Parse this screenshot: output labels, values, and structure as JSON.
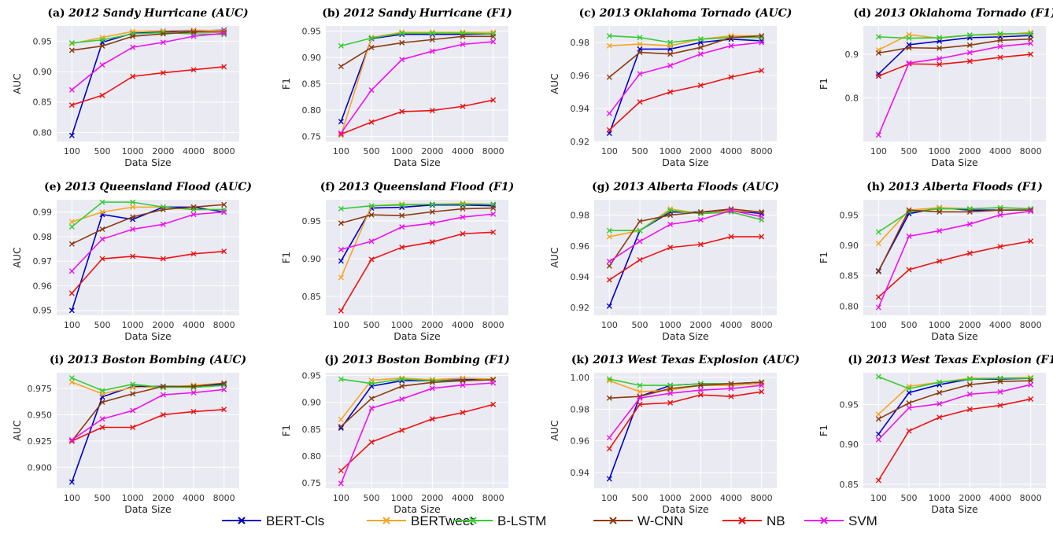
{
  "chart_data": {
    "type": "line",
    "x_categories": [
      "100",
      "500",
      "1000",
      "2000",
      "4000",
      "8000"
    ],
    "xlabel": "Data Size",
    "legend_position": "bottom-center",
    "series_names": [
      "BERT-Cls",
      "BERTweet",
      "B-LSTM",
      "W-CNN",
      "NB",
      "SVM"
    ],
    "series_colors": [
      "#0000cc",
      "#f5a623",
      "#33cc33",
      "#8b3a0f",
      "#ee1111",
      "#ee11ee"
    ],
    "marker": "x",
    "grid": true,
    "panels": [
      {
        "tag": "(a)",
        "title": "2012 Sandy Hurricane (AUC)",
        "ylabel": "AUC",
        "ylim": [
          0.785,
          0.975
        ],
        "yticks": [
          0.8,
          0.85,
          0.9,
          0.95
        ],
        "ytick_labels": [
          "0.80",
          "0.85",
          "0.90",
          "0.95"
        ],
        "series": [
          [
            0.795,
            0.948,
            0.963,
            0.965,
            0.967,
            0.968
          ],
          [
            0.946,
            0.956,
            0.966,
            0.967,
            0.968,
            0.967
          ],
          [
            0.947,
            0.952,
            0.962,
            0.964,
            0.962,
            0.961
          ],
          [
            0.935,
            0.942,
            0.958,
            0.962,
            0.965,
            0.965
          ],
          [
            0.845,
            0.861,
            0.892,
            0.898,
            0.903,
            0.908
          ],
          [
            0.87,
            0.911,
            0.94,
            0.948,
            0.958,
            0.963
          ]
        ]
      },
      {
        "tag": "(b)",
        "title": "2012 Sandy Hurricane (F1)",
        "ylabel": "F1",
        "ylim": [
          0.74,
          0.96
        ],
        "yticks": [
          0.75,
          0.8,
          0.85,
          0.9,
          0.95
        ],
        "ytick_labels": [
          "0.75",
          "0.80",
          "0.85",
          "0.90",
          "0.95"
        ],
        "series": [
          [
            0.778,
            0.936,
            0.944,
            0.944,
            0.944,
            0.945
          ],
          [
            0.752,
            0.938,
            0.948,
            0.948,
            0.948,
            0.948
          ],
          [
            0.922,
            0.937,
            0.946,
            0.946,
            0.946,
            0.945
          ],
          [
            0.883,
            0.919,
            0.928,
            0.934,
            0.94,
            0.94
          ],
          [
            0.754,
            0.777,
            0.797,
            0.799,
            0.807,
            0.819
          ],
          [
            0.756,
            0.838,
            0.896,
            0.912,
            0.925,
            0.93
          ]
        ]
      },
      {
        "tag": "(c)",
        "title": "2013 Oklahoma Tornado (AUC)",
        "ylabel": "AUC",
        "ylim": [
          0.92,
          0.99
        ],
        "yticks": [
          0.92,
          0.94,
          0.96,
          0.98
        ],
        "ytick_labels": [
          "0.92",
          "0.94",
          "0.96",
          "0.98"
        ],
        "series": [
          [
            0.925,
            0.976,
            0.976,
            0.98,
            0.982,
            0.981
          ],
          [
            0.978,
            0.979,
            0.978,
            0.982,
            0.984,
            0.984
          ],
          [
            0.984,
            0.983,
            0.98,
            0.982,
            0.983,
            0.983
          ],
          [
            0.959,
            0.974,
            0.973,
            0.977,
            0.983,
            0.984
          ],
          [
            0.927,
            0.944,
            0.95,
            0.954,
            0.959,
            0.963
          ],
          [
            0.937,
            0.961,
            0.966,
            0.973,
            0.978,
            0.98
          ]
        ]
      },
      {
        "tag": "(d)",
        "title": "2013 Oklahoma Tornado (F1)",
        "ylabel": "F1",
        "ylim": [
          0.7,
          0.965
        ],
        "yticks": [
          0.8,
          0.9
        ],
        "ytick_labels": [
          "0.8",
          "0.9"
        ],
        "series": [
          [
            0.855,
            0.922,
            0.93,
            0.938,
            0.94,
            0.943
          ],
          [
            0.91,
            0.945,
            0.937,
            0.944,
            0.945,
            0.95
          ],
          [
            0.94,
            0.937,
            0.938,
            0.944,
            0.947,
            0.947
          ],
          [
            0.903,
            0.915,
            0.914,
            0.921,
            0.932,
            0.935
          ],
          [
            0.85,
            0.878,
            0.877,
            0.884,
            0.893,
            0.9
          ],
          [
            0.715,
            0.88,
            0.89,
            0.904,
            0.918,
            0.925
          ]
        ]
      },
      {
        "tag": "(e)",
        "title": "2013 Queensland Flood (AUC)",
        "ylabel": "AUC",
        "ylim": [
          0.948,
          0.995
        ],
        "yticks": [
          0.95,
          0.96,
          0.97,
          0.98,
          0.99
        ],
        "ytick_labels": [
          "0.95",
          "0.96",
          "0.97",
          "0.98",
          "0.99"
        ],
        "series": [
          [
            0.95,
            0.989,
            0.987,
            0.992,
            0.992,
            0.99
          ],
          [
            0.986,
            0.99,
            0.992,
            0.992,
            0.991,
            0.991
          ],
          [
            0.984,
            0.994,
            0.994,
            0.992,
            0.991,
            0.991
          ],
          [
            0.977,
            0.983,
            0.988,
            0.991,
            0.992,
            0.993
          ],
          [
            0.957,
            0.971,
            0.972,
            0.971,
            0.973,
            0.974
          ],
          [
            0.966,
            0.979,
            0.983,
            0.985,
            0.989,
            0.99
          ]
        ]
      },
      {
        "tag": "(f)",
        "title": "2013 Queensland Flood (F1)",
        "ylabel": "F1",
        "ylim": [
          0.825,
          0.978
        ],
        "yticks": [
          0.85,
          0.9,
          0.95
        ],
        "ytick_labels": [
          "0.85",
          "0.90",
          "0.95"
        ],
        "series": [
          [
            0.897,
            0.967,
            0.968,
            0.971,
            0.971,
            0.97
          ],
          [
            0.875,
            0.97,
            0.972,
            0.972,
            0.973,
            0.972
          ],
          [
            0.966,
            0.97,
            0.971,
            0.972,
            0.972,
            0.972
          ],
          [
            0.947,
            0.958,
            0.957,
            0.962,
            0.966,
            0.967
          ],
          [
            0.831,
            0.899,
            0.915,
            0.922,
            0.933,
            0.935
          ],
          [
            0.912,
            0.923,
            0.942,
            0.947,
            0.955,
            0.959
          ]
        ]
      },
      {
        "tag": "(g)",
        "title": "2013 Alberta Floods (AUC)",
        "ylabel": "AUC",
        "ylim": [
          0.915,
          0.99
        ],
        "yticks": [
          0.92,
          0.94,
          0.96,
          0.98
        ],
        "ytick_labels": [
          "0.92",
          "0.94",
          "0.96",
          "0.98"
        ],
        "series": [
          [
            0.921,
            0.97,
            0.982,
            0.982,
            0.983,
            0.981
          ],
          [
            0.966,
            0.97,
            0.984,
            0.981,
            0.983,
            0.982
          ],
          [
            0.97,
            0.97,
            0.983,
            0.981,
            0.982,
            0.977
          ],
          [
            0.947,
            0.976,
            0.98,
            0.982,
            0.984,
            0.982
          ],
          [
            0.938,
            0.951,
            0.959,
            0.961,
            0.966,
            0.966
          ],
          [
            0.95,
            0.963,
            0.974,
            0.977,
            0.983,
            0.979
          ]
        ]
      },
      {
        "tag": "(h)",
        "title": "2013 Alberta Floods (F1)",
        "ylabel": "F1",
        "ylim": [
          0.785,
          0.975
        ],
        "yticks": [
          0.8,
          0.85,
          0.9,
          0.95
        ],
        "ytick_labels": [
          "0.80",
          "0.85",
          "0.90",
          "0.95"
        ],
        "series": [
          [
            0.858,
            0.952,
            0.962,
            0.958,
            0.958,
            0.958
          ],
          [
            0.903,
            0.958,
            0.962,
            0.96,
            0.962,
            0.96
          ],
          [
            0.922,
            0.955,
            0.96,
            0.96,
            0.962,
            0.96
          ],
          [
            0.857,
            0.958,
            0.955,
            0.955,
            0.958,
            0.958
          ],
          [
            0.815,
            0.86,
            0.874,
            0.887,
            0.898,
            0.907
          ],
          [
            0.798,
            0.915,
            0.924,
            0.935,
            0.95,
            0.956
          ]
        ]
      },
      {
        "tag": "(i)",
        "title": "2013 Boston Bombing (AUC)",
        "ylabel": "AUC",
        "ylim": [
          0.88,
          0.99
        ],
        "yticks": [
          0.9,
          0.925,
          0.95,
          0.975
        ],
        "ytick_labels": [
          "0.900",
          "0.925",
          "0.950",
          "0.975"
        ],
        "series": [
          [
            0.886,
            0.967,
            0.977,
            0.977,
            0.977,
            0.979
          ],
          [
            0.981,
            0.97,
            0.976,
            0.976,
            0.978,
            0.98
          ],
          [
            0.985,
            0.973,
            0.979,
            0.976,
            0.976,
            0.978
          ],
          [
            0.925,
            0.962,
            0.97,
            0.977,
            0.977,
            0.98
          ],
          [
            0.925,
            0.938,
            0.938,
            0.95,
            0.953,
            0.955
          ],
          [
            0.926,
            0.946,
            0.954,
            0.969,
            0.971,
            0.974
          ]
        ]
      },
      {
        "tag": "(j)",
        "title": "2013 Boston Bombing (F1)",
        "ylabel": "F1",
        "ylim": [
          0.74,
          0.955
        ],
        "yticks": [
          0.75,
          0.8,
          0.85,
          0.9,
          0.95
        ],
        "ytick_labels": [
          "0.75",
          "0.80",
          "0.85",
          "0.90",
          "0.95"
        ],
        "series": [
          [
            0.852,
            0.93,
            0.94,
            0.94,
            0.942,
            0.942
          ],
          [
            0.868,
            0.941,
            0.945,
            0.942,
            0.945,
            0.943
          ],
          [
            0.943,
            0.935,
            0.943,
            0.94,
            0.94,
            0.942
          ],
          [
            0.855,
            0.907,
            0.93,
            0.937,
            0.94,
            0.942
          ],
          [
            0.773,
            0.826,
            0.848,
            0.869,
            0.881,
            0.896
          ],
          [
            0.749,
            0.889,
            0.906,
            0.926,
            0.932,
            0.936
          ]
        ]
      },
      {
        "tag": "(k)",
        "title": "2013 West Texas Explosion (AUC)",
        "ylabel": "AUC",
        "ylim": [
          0.93,
          1.003
        ],
        "yticks": [
          0.94,
          0.96,
          0.98,
          1.0
        ],
        "ytick_labels": [
          "0.94",
          "0.96",
          "0.98",
          "1.00"
        ],
        "series": [
          [
            0.936,
            0.988,
            0.995,
            0.996,
            0.996,
            0.997
          ],
          [
            0.998,
            0.991,
            0.992,
            0.995,
            0.995,
            0.996
          ],
          [
            0.999,
            0.995,
            0.995,
            0.996,
            0.996,
            0.997
          ],
          [
            0.987,
            0.988,
            0.993,
            0.995,
            0.996,
            0.997
          ],
          [
            0.955,
            0.983,
            0.984,
            0.989,
            0.988,
            0.991
          ],
          [
            0.962,
            0.987,
            0.99,
            0.992,
            0.993,
            0.995
          ]
        ]
      },
      {
        "tag": "(l)",
        "title": "2013 West Texas Explosion (F1)",
        "ylabel": "F1",
        "ylim": [
          0.845,
          0.99
        ],
        "yticks": [
          0.85,
          0.9,
          0.95
        ],
        "ytick_labels": [
          "0.85",
          "0.90",
          "0.95"
        ],
        "series": [
          [
            0.913,
            0.965,
            0.975,
            0.982,
            0.982,
            0.983
          ],
          [
            0.938,
            0.973,
            0.978,
            0.983,
            0.983,
            0.984
          ],
          [
            0.985,
            0.97,
            0.978,
            0.982,
            0.983,
            0.983
          ],
          [
            0.932,
            0.952,
            0.965,
            0.975,
            0.979,
            0.98
          ],
          [
            0.855,
            0.917,
            0.934,
            0.944,
            0.949,
            0.957
          ],
          [
            0.906,
            0.946,
            0.951,
            0.963,
            0.966,
            0.975
          ]
        ]
      }
    ]
  }
}
